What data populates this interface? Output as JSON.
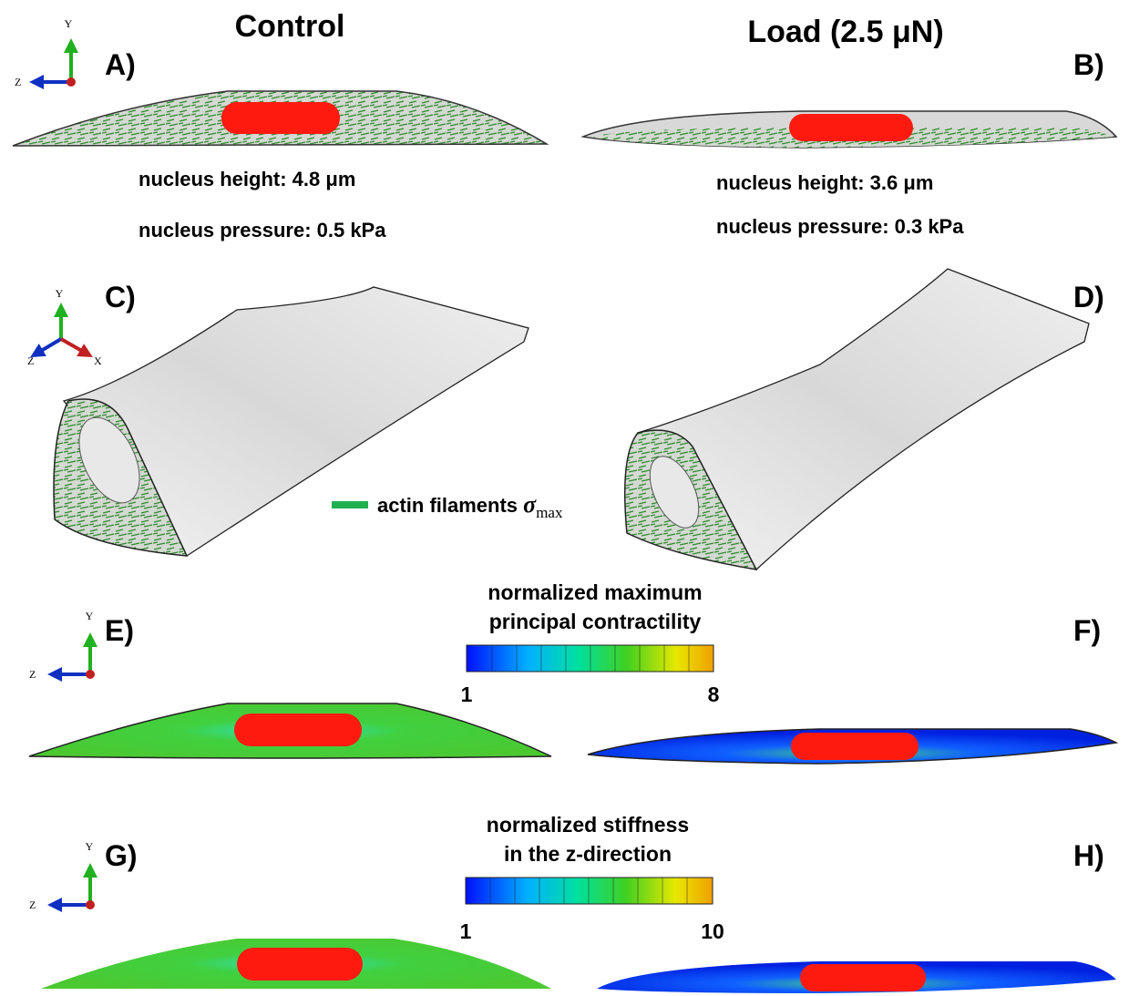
{
  "headers": {
    "control": "Control",
    "load": "Load (2.5 μN)"
  },
  "panels": {
    "a": "A)",
    "b": "B)",
    "c": "C)",
    "d": "D)",
    "e": "E)",
    "f": "F)",
    "g": "G)",
    "h": "H)"
  },
  "triads": [
    {
      "y": "Y",
      "z": "Z"
    },
    {
      "y": "Y",
      "z": "Z",
      "x": "X"
    },
    {
      "y": "Y",
      "z": "Z"
    },
    {
      "y": "Y",
      "z": "Z"
    }
  ],
  "annotations": {
    "control_height": "nucleus height: 4.8 μm",
    "control_pressure": "nucleus pressure: 0.5 kPa",
    "load_height": "nucleus height: 3.6 μm",
    "load_pressure": "nucleus pressure: 0.3 kPa"
  },
  "legend": {
    "label": "actin filaments",
    "symbol": "σ",
    "subscript": "max"
  },
  "colorbars": [
    {
      "title": [
        "normalized maximum",
        "principal contractility"
      ],
      "min": 1,
      "max": 8
    },
    {
      "title": [
        "normalized stiffness",
        "in the z-direction"
      ],
      "min": 1,
      "max": 10
    }
  ]
}
